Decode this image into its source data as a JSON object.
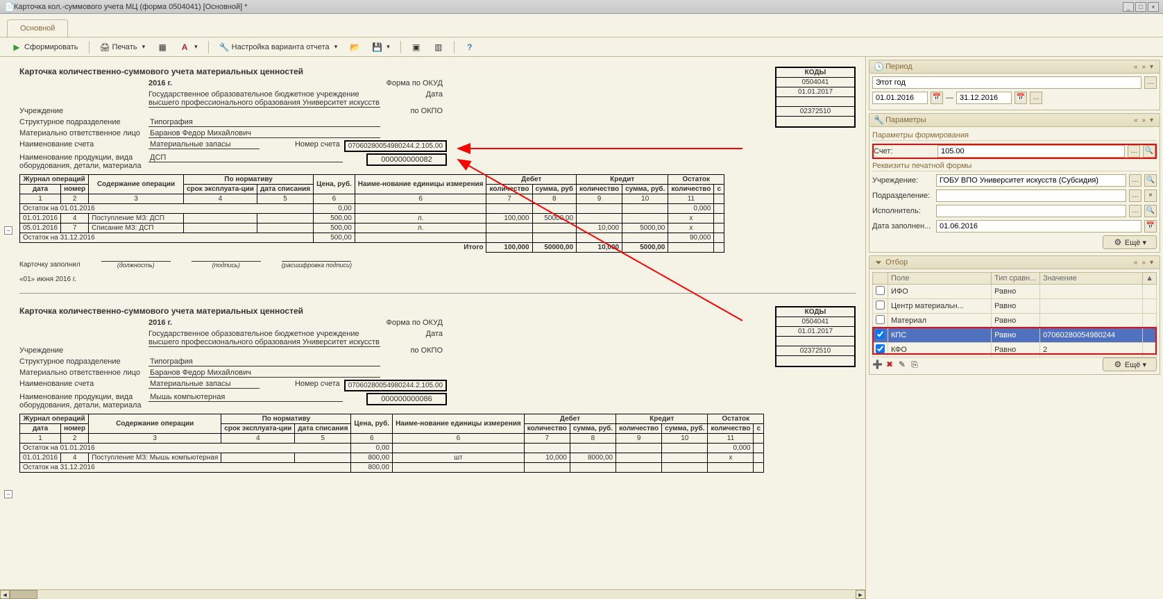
{
  "window": {
    "title": "Карточка кол.-суммового учета МЦ (форма 0504041) [Основной] *"
  },
  "tab_main": "Основной",
  "toolbar": {
    "run": "Сформировать",
    "print": "Печать",
    "settings": "Настройка варианта отчета"
  },
  "panels": {
    "period_title": "Период",
    "period_text": "Этот год",
    "date_from": "01.01.2016",
    "date_to": "31.12.2016",
    "params_title": "Параметры",
    "params_group": "Параметры формирования",
    "acct_lbl": "Счет:",
    "acct_val": "105.00",
    "print_group": "Реквизиты печатной формы",
    "org_lbl": "Учреждение:",
    "org_val": "ГОБУ ВПО Университет искусств (Субсидия)",
    "dept_lbl": "Подразделение:",
    "exec_lbl": "Исполнитель:",
    "datefill_lbl": "Дата заполнен...",
    "datefill_val": "01.06.2016",
    "filter_title": "Отбор",
    "col_field": "Поле",
    "col_cmp": "Тип сравн...",
    "col_val": "Значение",
    "more": "Ещё"
  },
  "filters": [
    {
      "on": false,
      "field": "ИФО",
      "cmp": "Равно",
      "val": ""
    },
    {
      "on": false,
      "field": "Центр материальн...",
      "cmp": "Равно",
      "val": ""
    },
    {
      "on": false,
      "field": "Материал",
      "cmp": "Равно",
      "val": ""
    },
    {
      "on": true,
      "field": "КПС",
      "cmp": "Равно",
      "val": "07060280054980244"
    },
    {
      "on": true,
      "field": "КФО",
      "cmp": "Равно",
      "val": "2"
    }
  ],
  "card": {
    "title": "Карточка количественно-суммового учета материальных ценностей",
    "year": "2016 г.",
    "org_full": "Государственное образовательное бюджетное учреждение высшего профессионального образования  Университет искусств",
    "lbl_org": "Учреждение",
    "lbl_dept": "Структурное подразделение",
    "dept": "Типография",
    "lbl_person": "Материально ответственное лицо",
    "person": "Баранов Федор Михайлович",
    "lbl_account": "Наименование счета",
    "account": "Материальные запасы",
    "lbl_acctno": "Номер счета",
    "acctno": "07060280054980244.2.105.00",
    "lbl_product": "Наименование продукции, вида оборудования, детали, материала",
    "product1": "ДСП",
    "code1": "000000000082",
    "product2": "Мышь компьютерная",
    "code2": "000000000086",
    "lbl_okud": "Форма по ОКУД",
    "lbl_date": "Дата",
    "lbl_okpo": "по ОКПО",
    "kody_h": "КОДЫ",
    "okud": "0504041",
    "date": "01.01.2017",
    "okpo": "02372510"
  },
  "cols": {
    "journal": "Журнал операций",
    "date": "дата",
    "num": "номер",
    "content": "Содержание операции",
    "norm": "По нормативу",
    "life": "срок эксплуата-ции",
    "writeoff": "дата списания",
    "price": "Цена, руб.",
    "unit": "Наиме-нование единицы измерения",
    "debit": "Дебет",
    "credit": "Кредит",
    "balance": "Остаток",
    "qty": "количество",
    "sum": "сумма, руб.",
    "sum2": "сумма, руб",
    "total": "Итого"
  },
  "rows1_open": "Остаток на 01.01.2016",
  "rows1": [
    {
      "d": "01.01.2016",
      "n": "4",
      "c": "Поступление МЗ: ДСП",
      "p": "500,00",
      "u": "л.",
      "dq": "100,000",
      "ds": "50000,00",
      "cq": "",
      "cs": "",
      "bq": "x"
    },
    {
      "d": "05.01.2016",
      "n": "7",
      "c": "Списание МЗ: ДСП",
      "p": "500,00",
      "u": "л.",
      "dq": "",
      "ds": "",
      "cq": "10,000",
      "cs": "5000,00",
      "bq": "x"
    }
  ],
  "rows1_close_lbl": "Остаток на 31.12.2016",
  "rows1_bal_open": "0,000",
  "rows1_close_p": "500,00",
  "rows1_close_bq": "90,000",
  "rows1_total": {
    "dq": "100,000",
    "ds": "50000,00",
    "cq": "10,000",
    "cs": "5000,00"
  },
  "footer": {
    "filled": "Карточку заполнил",
    "pos": "(должность)",
    "sign": "(подпись)",
    "name": "(расшифровка подписи)",
    "date": "«01» июня 2016 г."
  },
  "rows2_open": "Остаток на 01.01.2016",
  "rows2_open_b": "0,000",
  "rows2": [
    {
      "d": "01.01.2016",
      "n": "4",
      "c": "Поступление МЗ: Мышь компьютерная",
      "p": "800,00",
      "u": "шт",
      "dq": "10,000",
      "ds": "8000,00",
      "bq": "x"
    }
  ],
  "rows2_close_lbl": "Остаток на 31.12.2016",
  "rows2_close_p": "800,00"
}
